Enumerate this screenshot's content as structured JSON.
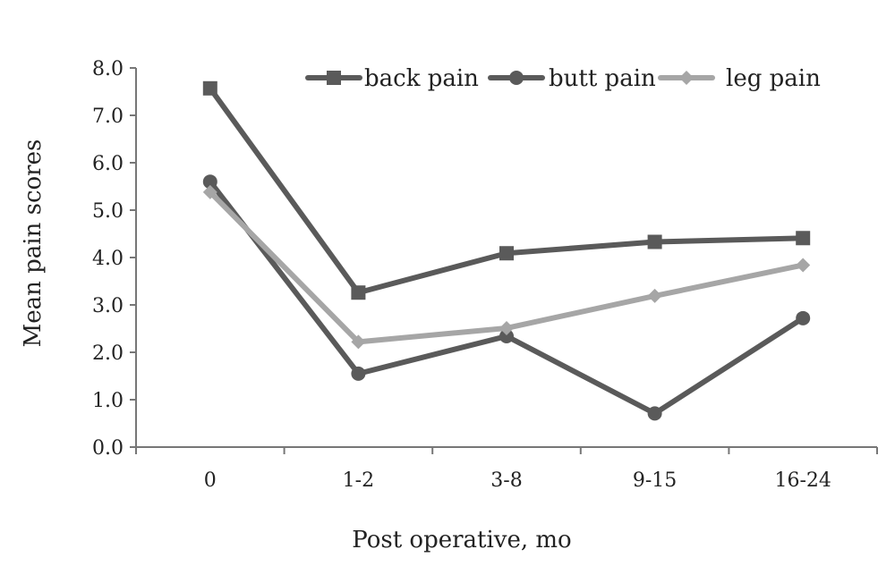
{
  "chart_data": {
    "type": "line",
    "categories": [
      "0",
      "1-2",
      "3-8",
      "9-15",
      "16-24"
    ],
    "series": [
      {
        "name": "back pain",
        "marker": "square",
        "color": "#5a5a5a",
        "values": [
          7.57,
          3.26,
          4.09,
          4.33,
          4.41
        ]
      },
      {
        "name": "butt pain",
        "marker": "circle",
        "color": "#5a5a5a",
        "values": [
          5.6,
          1.55,
          2.34,
          0.71,
          2.72
        ]
      },
      {
        "name": "leg pain",
        "marker": "diamond",
        "color": "#a6a6a6",
        "values": [
          5.38,
          2.22,
          2.51,
          3.19,
          3.84
        ]
      }
    ],
    "xlabel": "Post operative, mo",
    "ylabel": "Mean pain scores",
    "ylim": [
      0,
      8
    ],
    "yticks": [
      "0.0",
      "1.0",
      "2.0",
      "3.0",
      "4.0",
      "5.0",
      "6.0",
      "7.0",
      "8.0"
    ],
    "grid": false,
    "legend_position": "top-right"
  }
}
